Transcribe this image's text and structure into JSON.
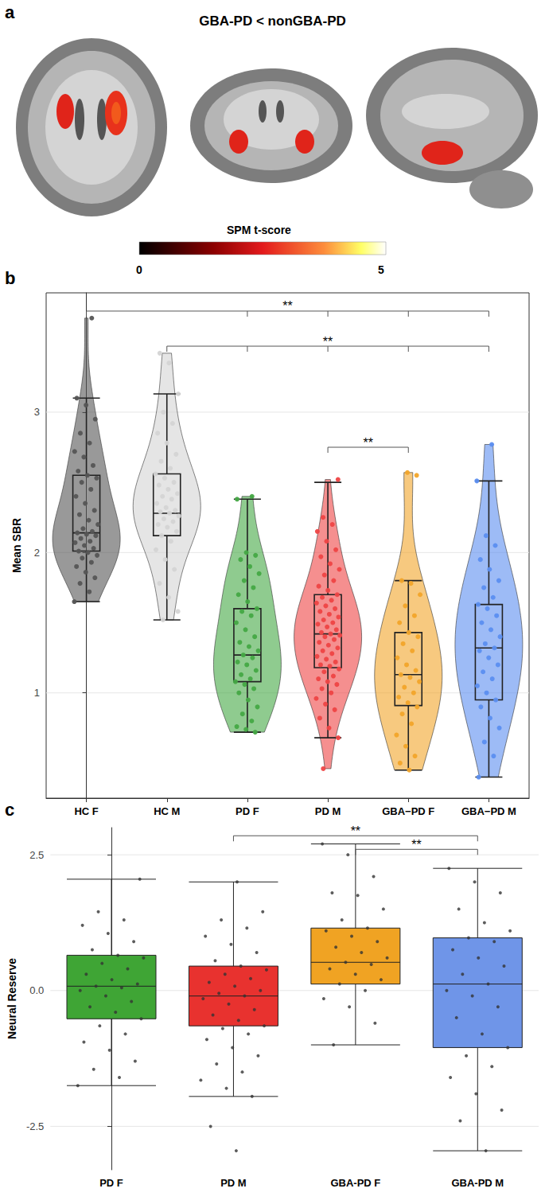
{
  "chart_data": [
    {
      "panel": "a",
      "type": "brain_map",
      "title": "GBA-PD < nonGBA-PD",
      "colorbar": {
        "label": "SPM t-score",
        "range": [
          0,
          5.1
        ],
        "ticks": [
          0,
          5
        ]
      }
    },
    {
      "panel": "b",
      "type": "violin",
      "ylabel": "Mean SBR",
      "categories": [
        "HC F",
        "HC M",
        "PD F",
        "PD M",
        "GBA−PD F",
        "GBA−PD M"
      ],
      "colors": [
        "#555555",
        "#d4d4d4",
        "#44a845",
        "#ee4545",
        "#f2a52a",
        "#5b8ef0"
      ],
      "ylim": [
        0.25,
        3.85
      ],
      "yticks": [
        1,
        2,
        3
      ],
      "grid": true,
      "box": [
        [
          1.65,
          2.01,
          2.14,
          2.55,
          3.1
        ],
        [
          1.52,
          2.12,
          2.28,
          2.56,
          3.13
        ],
        [
          0.72,
          1.08,
          1.27,
          1.6,
          2.38
        ],
        [
          0.68,
          1.18,
          1.42,
          1.7,
          2.5
        ],
        [
          0.45,
          0.91,
          1.13,
          1.43,
          1.8
        ],
        [
          0.4,
          0.95,
          1.32,
          1.63,
          2.51
        ]
      ],
      "points": [
        [
          1.65,
          1.72,
          1.78,
          1.82,
          1.86,
          1.9,
          1.93,
          1.96,
          1.98,
          2.0,
          2.01,
          2.03,
          2.05,
          2.07,
          2.08,
          2.1,
          2.12,
          2.13,
          2.14,
          2.15,
          2.17,
          2.2,
          2.23,
          2.27,
          2.3,
          2.35,
          2.4,
          2.45,
          2.5,
          2.53,
          2.55,
          2.58,
          2.62,
          2.68,
          2.72,
          2.78,
          2.85,
          2.95,
          3.05,
          3.1,
          3.67
        ],
        [
          1.52,
          1.58,
          1.68,
          1.78,
          1.88,
          1.95,
          2.02,
          2.08,
          2.12,
          2.15,
          2.18,
          2.2,
          2.22,
          2.24,
          2.26,
          2.28,
          2.29,
          2.3,
          2.32,
          2.35,
          2.38,
          2.4,
          2.42,
          2.45,
          2.48,
          2.5,
          2.53,
          2.56,
          2.6,
          2.65,
          2.7,
          2.78,
          2.85,
          2.92,
          3.0,
          3.13,
          3.35,
          3.42
        ],
        [
          0.72,
          0.74,
          0.76,
          0.8,
          0.85,
          0.9,
          0.95,
          1.0,
          1.03,
          1.06,
          1.08,
          1.1,
          1.13,
          1.16,
          1.2,
          1.22,
          1.25,
          1.27,
          1.3,
          1.33,
          1.36,
          1.4,
          1.45,
          1.5,
          1.55,
          1.58,
          1.6,
          1.65,
          1.7,
          1.75,
          1.8,
          1.85,
          1.9,
          1.95,
          1.98,
          2.0,
          2.38,
          2.4
        ],
        [
          0.46,
          0.68,
          0.75,
          0.82,
          0.88,
          0.92,
          0.96,
          1.0,
          1.03,
          1.06,
          1.08,
          1.1,
          1.12,
          1.15,
          1.17,
          1.19,
          1.2,
          1.22,
          1.24,
          1.26,
          1.28,
          1.3,
          1.32,
          1.34,
          1.36,
          1.38,
          1.4,
          1.41,
          1.42,
          1.43,
          1.45,
          1.47,
          1.49,
          1.5,
          1.52,
          1.54,
          1.56,
          1.58,
          1.6,
          1.62,
          1.64,
          1.66,
          1.68,
          1.7,
          1.73,
          1.76,
          1.8,
          1.84,
          1.88,
          1.92,
          1.97,
          2.02,
          2.08,
          2.15,
          2.2,
          2.25,
          2.52
        ],
        [
          0.45,
          0.5,
          0.55,
          0.62,
          0.7,
          0.78,
          0.85,
          0.9,
          0.93,
          0.97,
          1.0,
          1.04,
          1.08,
          1.11,
          1.13,
          1.16,
          1.2,
          1.25,
          1.3,
          1.35,
          1.4,
          1.43,
          1.5,
          1.55,
          1.62,
          1.7,
          1.78,
          1.8,
          2.55,
          2.57
        ],
        [
          0.4,
          0.55,
          0.65,
          0.75,
          0.82,
          0.9,
          0.95,
          1.0,
          1.05,
          1.1,
          1.15,
          1.2,
          1.25,
          1.3,
          1.32,
          1.35,
          1.4,
          1.45,
          1.5,
          1.55,
          1.6,
          1.63,
          1.68,
          1.75,
          1.8,
          1.88,
          1.95,
          2.05,
          2.12,
          2.51,
          2.77
        ]
      ],
      "significance": [
        {
          "from": "HC F",
          "to": [
            "PD F",
            "PD M",
            "GBA−PD F",
            "GBA−PD M"
          ],
          "y": 3.72,
          "label": "**"
        },
        {
          "from": "HC M",
          "to": [
            "PD F",
            "PD M",
            "GBA−PD F",
            "GBA−PD M"
          ],
          "y": 3.47,
          "label": "**"
        },
        {
          "from": "PD M",
          "to": [
            "GBA−PD F"
          ],
          "y": 2.75,
          "label": "**"
        }
      ]
    },
    {
      "panel": "c",
      "type": "boxplot",
      "ylabel": "Neural Reserve",
      "categories": [
        "PD F",
        "PD M",
        "GBA-PD F",
        "GBA-PD M"
      ],
      "colors": [
        "#3fa535",
        "#e8322f",
        "#f0a323",
        "#6f95e8"
      ],
      "ylim": [
        -3.3,
        3.0
      ],
      "yticks": [
        -2.5,
        {
          "value": 0,
          "label": "0.0"
        },
        2.5
      ],
      "grid": true,
      "box": [
        [
          -1.75,
          -0.52,
          0.08,
          0.65,
          2.05
        ],
        [
          -1.95,
          -0.65,
          -0.1,
          0.45,
          2.0
        ],
        [
          -1.0,
          0.12,
          0.52,
          1.15,
          2.7
        ],
        [
          -2.95,
          -1.05,
          0.12,
          0.97,
          2.25
        ]
      ],
      "points": [
        [
          -1.75,
          -1.6,
          -1.45,
          -1.3,
          -1.1,
          -0.95,
          -0.8,
          -0.65,
          -0.52,
          -0.4,
          -0.3,
          -0.2,
          -0.1,
          0.0,
          0.05,
          0.08,
          0.12,
          0.2,
          0.3,
          0.4,
          0.5,
          0.6,
          0.65,
          0.75,
          0.9,
          1.05,
          1.2,
          1.3,
          1.45,
          2.05
        ],
        [
          -2.95,
          -2.5,
          -1.95,
          -1.8,
          -1.65,
          -1.5,
          -1.35,
          -1.2,
          -1.05,
          -0.9,
          -0.8,
          -0.7,
          -0.65,
          -0.55,
          -0.45,
          -0.35,
          -0.25,
          -0.15,
          -0.1,
          -0.05,
          0.0,
          0.08,
          0.15,
          0.22,
          0.3,
          0.38,
          0.45,
          0.55,
          0.7,
          0.85,
          1.0,
          1.15,
          1.3,
          1.45,
          2.0
        ],
        [
          -1.0,
          -0.6,
          -0.3,
          -0.15,
          0.0,
          0.12,
          0.2,
          0.3,
          0.4,
          0.48,
          0.52,
          0.6,
          0.7,
          0.8,
          0.9,
          1.0,
          1.1,
          1.15,
          1.3,
          1.5,
          1.75,
          1.8,
          2.1,
          2.5,
          2.7
        ],
        [
          -2.95,
          -2.4,
          -2.2,
          -1.9,
          -1.6,
          -1.4,
          -1.2,
          -1.05,
          -0.8,
          -0.5,
          -0.3,
          -0.1,
          0.0,
          0.12,
          0.3,
          0.45,
          0.6,
          0.75,
          0.9,
          0.97,
          1.1,
          1.25,
          1.5,
          1.8,
          2.0,
          2.25
        ]
      ],
      "significance": [
        {
          "from": "PD M",
          "to": [
            "GBA-PD M"
          ],
          "y": 2.85,
          "label": "**"
        },
        {
          "from": "GBA-PD F",
          "to": [
            "GBA-PD M"
          ],
          "y": 2.6,
          "label": "**"
        }
      ]
    }
  ]
}
